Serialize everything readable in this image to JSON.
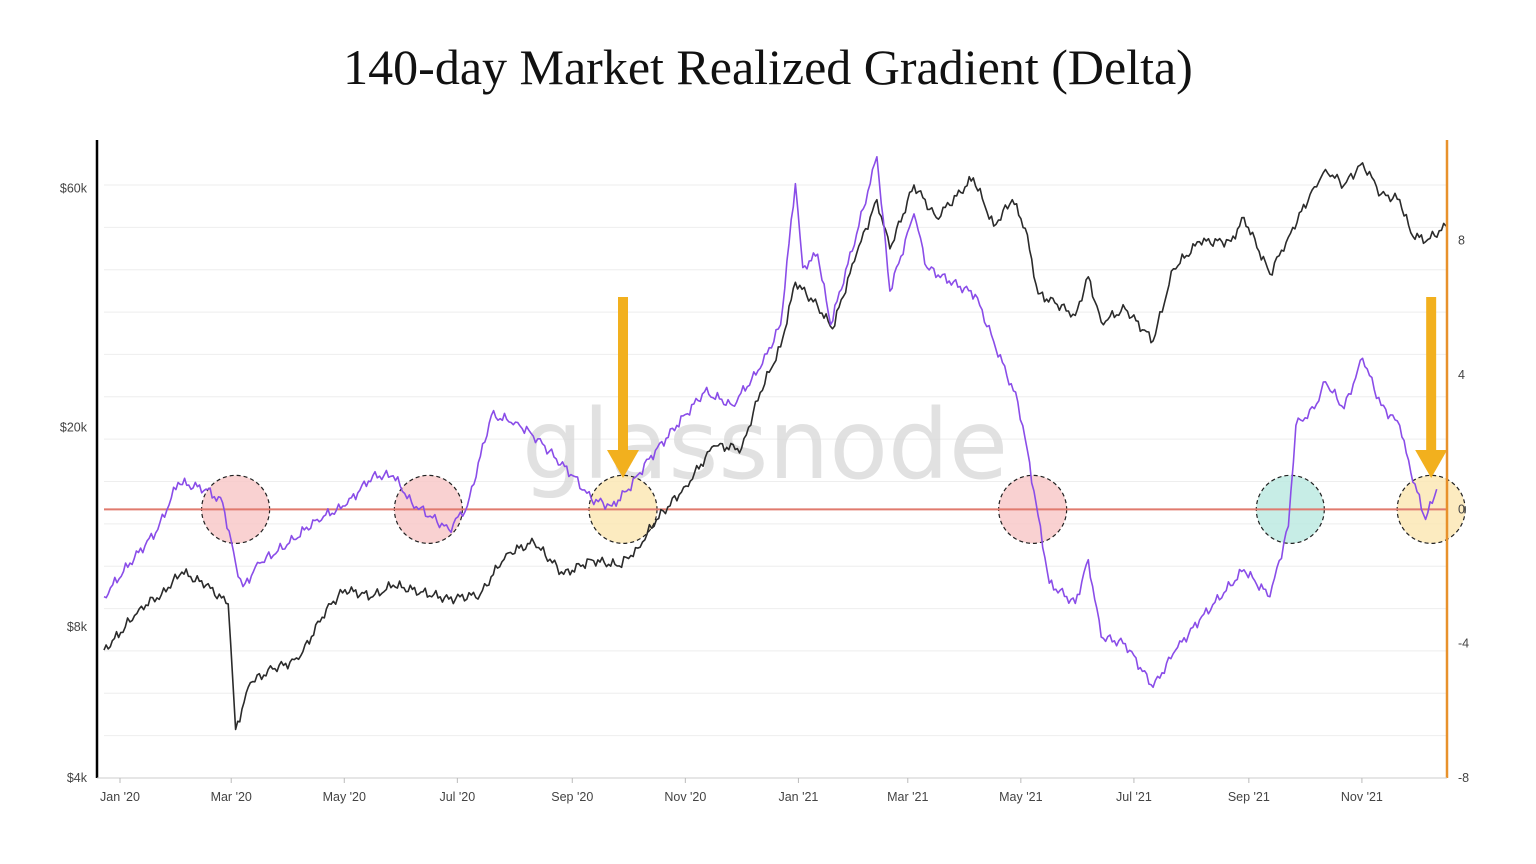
{
  "chart_data": {
    "type": "line",
    "title": "140-day Market Realized Gradient (Delta)",
    "watermark": "glassnode",
    "grid": true,
    "x_axis": {
      "type": "date",
      "range": [
        "2020-01-01",
        "2021-12-25"
      ],
      "ticks": [
        {
          "date": "2020-01-01",
          "label": "Jan '20"
        },
        {
          "date": "2020-03-01",
          "label": "Mar '20"
        },
        {
          "date": "2020-05-01",
          "label": "May '20"
        },
        {
          "date": "2020-07-01",
          "label": "Jul '20"
        },
        {
          "date": "2020-09-01",
          "label": "Sep '20"
        },
        {
          "date": "2020-11-01",
          "label": "Nov '20"
        },
        {
          "date": "2021-01-01",
          "label": "Jan '21"
        },
        {
          "date": "2021-03-01",
          "label": "Mar '21"
        },
        {
          "date": "2021-05-01",
          "label": "May '21"
        },
        {
          "date": "2021-07-01",
          "label": "Jul '21"
        },
        {
          "date": "2021-09-01",
          "label": "Sep '21"
        },
        {
          "date": "2021-11-01",
          "label": "Nov '21"
        }
      ]
    },
    "y_left": {
      "scale": "log",
      "range": [
        4000,
        75000
      ],
      "color": "#111111",
      "ticks": [
        {
          "value": 60000,
          "label": "$60k"
        },
        {
          "value": 20000,
          "label": "$20k"
        },
        {
          "value": 8000,
          "label": "$8k"
        },
        {
          "value": 4000,
          "label": "$4k"
        }
      ]
    },
    "y_right": {
      "scale": "linear",
      "range": [
        -8,
        11
      ],
      "color": "#e8912b",
      "ticks": [
        {
          "value": 8,
          "label": "8"
        },
        {
          "value": 4,
          "label": "4"
        },
        {
          "value": 0,
          "label": "0"
        },
        {
          "value": -4,
          "label": "-4"
        },
        {
          "value": -8,
          "label": "-8"
        }
      ]
    },
    "series": [
      {
        "axis": "left",
        "color": "#2b2b2b",
        "points": [
          [
            "2020-01-01",
            7200
          ],
          [
            "2020-01-10",
            7800
          ],
          [
            "2020-01-20",
            8700
          ],
          [
            "2020-02-01",
            9300
          ],
          [
            "2020-02-12",
            10300
          ],
          [
            "2020-02-25",
            9700
          ],
          [
            "2020-03-08",
            8900
          ],
          [
            "2020-03-12",
            5000
          ],
          [
            "2020-03-20",
            6200
          ],
          [
            "2020-04-01",
            6600
          ],
          [
            "2020-04-15",
            6900
          ],
          [
            "2020-04-30",
            8700
          ],
          [
            "2020-05-10",
            9500
          ],
          [
            "2020-05-25",
            9200
          ],
          [
            "2020-06-05",
            9700
          ],
          [
            "2020-06-20",
            9400
          ],
          [
            "2020-07-05",
            9100
          ],
          [
            "2020-07-22",
            9300
          ],
          [
            "2020-08-05",
            11200
          ],
          [
            "2020-08-20",
            11800
          ],
          [
            "2020-09-05",
            10200
          ],
          [
            "2020-09-20",
            10900
          ],
          [
            "2020-10-05",
            10600
          ],
          [
            "2020-10-15",
            11500
          ],
          [
            "2020-10-25",
            13100
          ],
          [
            "2020-11-10",
            15300
          ],
          [
            "2020-11-25",
            18400
          ],
          [
            "2020-12-10",
            18200
          ],
          [
            "2020-12-20",
            23500
          ],
          [
            "2020-12-31",
            29000
          ],
          [
            "2021-01-08",
            39000
          ],
          [
            "2021-01-20",
            35000
          ],
          [
            "2021-01-28",
            31500
          ],
          [
            "2021-02-10",
            44500
          ],
          [
            "2021-02-21",
            57000
          ],
          [
            "2021-02-28",
            45500
          ],
          [
            "2021-03-13",
            61000
          ],
          [
            "2021-03-25",
            52500
          ],
          [
            "2021-04-05",
            58000
          ],
          [
            "2021-04-14",
            63000
          ],
          [
            "2021-04-25",
            50500
          ],
          [
            "2021-05-05",
            57000
          ],
          [
            "2021-05-12",
            50000
          ],
          [
            "2021-05-19",
            37000
          ],
          [
            "2021-05-28",
            35500
          ],
          [
            "2021-06-08",
            33500
          ],
          [
            "2021-06-15",
            40000
          ],
          [
            "2021-06-22",
            32500
          ],
          [
            "2021-07-05",
            34500
          ],
          [
            "2021-07-20",
            29800
          ],
          [
            "2021-07-31",
            41500
          ],
          [
            "2021-08-14",
            47000
          ],
          [
            "2021-08-31",
            47100
          ],
          [
            "2021-09-07",
            52500
          ],
          [
            "2021-09-21",
            40500
          ],
          [
            "2021-10-01",
            48000
          ],
          [
            "2021-10-15",
            60500
          ],
          [
            "2021-10-21",
            65500
          ],
          [
            "2021-10-31",
            61000
          ],
          [
            "2021-11-10",
            67500
          ],
          [
            "2021-11-20",
            58500
          ],
          [
            "2021-11-30",
            57000
          ],
          [
            "2021-12-06",
            49000
          ],
          [
            "2021-12-14",
            47000
          ],
          [
            "2021-12-25",
            50500
          ]
        ]
      },
      {
        "axis": "right",
        "color": "#8a4de8",
        "points": [
          [
            "2020-01-01",
            -2.6
          ],
          [
            "2020-01-15",
            -1.6
          ],
          [
            "2020-01-30",
            -0.6
          ],
          [
            "2020-02-10",
            0.8
          ],
          [
            "2020-02-25",
            0.6
          ],
          [
            "2020-03-05",
            0.2
          ],
          [
            "2020-03-12",
            -1.6
          ],
          [
            "2020-03-16",
            -2.3
          ],
          [
            "2020-03-25",
            -1.6
          ],
          [
            "2020-04-10",
            -1.0
          ],
          [
            "2020-04-25",
            -0.3
          ],
          [
            "2020-05-10",
            0.1
          ],
          [
            "2020-05-25",
            1.0
          ],
          [
            "2020-06-05",
            1.0
          ],
          [
            "2020-06-15",
            0.2
          ],
          [
            "2020-06-25",
            -0.2
          ],
          [
            "2020-07-05",
            -0.6
          ],
          [
            "2020-07-15",
            0.1
          ],
          [
            "2020-07-28",
            2.8
          ],
          [
            "2020-08-10",
            2.6
          ],
          [
            "2020-08-22",
            2.1
          ],
          [
            "2020-09-01",
            1.5
          ],
          [
            "2020-09-10",
            1.0
          ],
          [
            "2020-09-20",
            0.3
          ],
          [
            "2020-10-01",
            0.1
          ],
          [
            "2020-10-10",
            0.6
          ],
          [
            "2020-10-21",
            1.5
          ],
          [
            "2020-11-05",
            2.5
          ],
          [
            "2020-11-20",
            3.5
          ],
          [
            "2020-12-05",
            3.1
          ],
          [
            "2020-12-20",
            4.2
          ],
          [
            "2020-12-31",
            5.5
          ],
          [
            "2021-01-08",
            9.7
          ],
          [
            "2021-01-12",
            7.2
          ],
          [
            "2021-01-20",
            7.6
          ],
          [
            "2021-01-27",
            5.5
          ],
          [
            "2021-02-10",
            8.2
          ],
          [
            "2021-02-21",
            10.5
          ],
          [
            "2021-02-28",
            6.5
          ],
          [
            "2021-03-13",
            8.8
          ],
          [
            "2021-03-20",
            7.2
          ],
          [
            "2021-04-01",
            6.8
          ],
          [
            "2021-04-15",
            6.4
          ],
          [
            "2021-04-25",
            5.0
          ],
          [
            "2021-05-08",
            3.2
          ],
          [
            "2021-05-12",
            2.1
          ],
          [
            "2021-05-19",
            -0.2
          ],
          [
            "2021-05-25",
            -2.2
          ],
          [
            "2021-06-08",
            -2.8
          ],
          [
            "2021-06-15",
            -1.5
          ],
          [
            "2021-06-22",
            -3.8
          ],
          [
            "2021-07-05",
            -4.0
          ],
          [
            "2021-07-20",
            -5.3
          ],
          [
            "2021-08-01",
            -4.2
          ],
          [
            "2021-08-14",
            -3.3
          ],
          [
            "2021-09-07",
            -1.8
          ],
          [
            "2021-09-21",
            -2.6
          ],
          [
            "2021-10-01",
            -0.5
          ],
          [
            "2021-10-05",
            2.5
          ],
          [
            "2021-10-15",
            3.0
          ],
          [
            "2021-10-21",
            3.8
          ],
          [
            "2021-10-31",
            3.0
          ],
          [
            "2021-11-10",
            4.5
          ],
          [
            "2021-11-20",
            3.1
          ],
          [
            "2021-11-30",
            2.5
          ],
          [
            "2021-12-06",
            1.1
          ],
          [
            "2021-12-14",
            -0.3
          ],
          [
            "2021-12-20",
            0.6
          ]
        ]
      }
    ],
    "reference_line": {
      "axis": "right",
      "value": 0,
      "color": "#e07a6e"
    },
    "highlight_circles": [
      {
        "date": "2020-03-12",
        "value": 0,
        "color": "#f7c6c6"
      },
      {
        "date": "2020-06-24",
        "value": 0,
        "color": "#f7c6c6"
      },
      {
        "date": "2020-10-07",
        "value": 0,
        "color": "#fbe6b0"
      },
      {
        "date": "2021-05-16",
        "value": 0,
        "color": "#f7c6c6"
      },
      {
        "date": "2021-10-02",
        "value": 0,
        "color": "#b9e9e0"
      },
      {
        "date": "2021-12-17",
        "value": 0,
        "color": "#fbe6b0"
      }
    ],
    "arrows": [
      {
        "date": "2020-10-07",
        "color": "#f2b01e"
      },
      {
        "date": "2021-12-17",
        "color": "#f2b01e"
      }
    ]
  }
}
